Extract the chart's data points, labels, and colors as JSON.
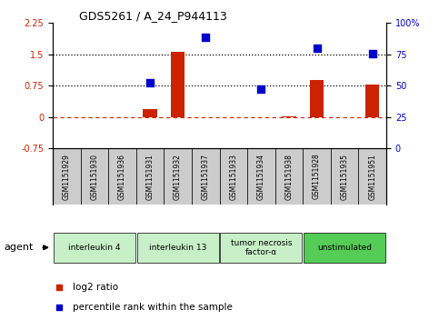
{
  "title": "GDS5261 / A_24_P944113",
  "samples": [
    "GSM1151929",
    "GSM1151930",
    "GSM1151936",
    "GSM1151931",
    "GSM1151932",
    "GSM1151937",
    "GSM1151933",
    "GSM1151934",
    "GSM1151938",
    "GSM1151928",
    "GSM1151935",
    "GSM1151951"
  ],
  "log2_ratio": [
    0,
    0,
    0,
    0.18,
    1.57,
    0,
    0,
    0,
    0.02,
    0.88,
    0,
    0.78
  ],
  "percentile_rank_left_axis": [
    null,
    null,
    null,
    0.82,
    null,
    1.92,
    null,
    0.66,
    null,
    1.65,
    null,
    1.52
  ],
  "groups": [
    {
      "label": "interleukin 4",
      "start": 0,
      "end": 3,
      "color": "#c8f0c8"
    },
    {
      "label": "interleukin 13",
      "start": 3,
      "end": 6,
      "color": "#c8f0c8"
    },
    {
      "label": "tumor necrosis\nfactor-α",
      "start": 6,
      "end": 9,
      "color": "#c8f0c8"
    },
    {
      "label": "unstimulated",
      "start": 9,
      "end": 12,
      "color": "#55cc55"
    }
  ],
  "ylim_left": [
    -0.75,
    2.25
  ],
  "ylim_right": [
    0,
    100
  ],
  "yticks_left": [
    -0.75,
    0,
    0.75,
    1.5,
    2.25
  ],
  "yticks_right": [
    0,
    25,
    50,
    75,
    100
  ],
  "bar_color": "#cc2200",
  "dot_color": "#0000cc",
  "bar_width": 0.5,
  "dot_size": 35,
  "sample_box_color": "#cccccc",
  "n_samples": 12
}
